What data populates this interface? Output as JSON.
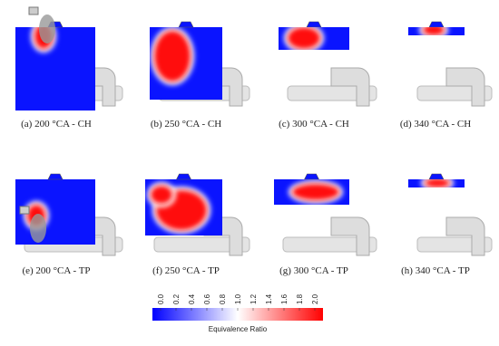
{
  "figure": {
    "panels": [
      {
        "caption": "(a) 200 °CA - CH"
      },
      {
        "caption": "(b) 250 °CA - CH"
      },
      {
        "caption": "(c) 300 °CA - CH"
      },
      {
        "caption": "(d) 340 °CA - CH"
      },
      {
        "caption": "(e) 200 °CA - TP"
      },
      {
        "caption": "(f) 250 °CA - TP"
      },
      {
        "caption": "(g) 300 °CA - TP"
      },
      {
        "caption": "(h) 340 °CA - TP"
      }
    ],
    "colorbar": {
      "ticks": [
        {
          "value": 0,
          "label": "0.0"
        },
        {
          "value": 0.2,
          "label": "0.2"
        },
        {
          "value": 0.4,
          "label": "0.4"
        },
        {
          "value": 0.6,
          "label": "0.6"
        },
        {
          "value": 0.8,
          "label": "0.8"
        },
        {
          "value": 1,
          "label": "1.0"
        },
        {
          "value": 1.2,
          "label": "1.2"
        },
        {
          "value": 1.4,
          "label": "1.4"
        },
        {
          "value": 1.6,
          "label": "1.6"
        },
        {
          "value": 1.8,
          "label": "1.8"
        },
        {
          "value": 2,
          "label": "2.0"
        }
      ],
      "label": "Equivalence Ratio"
    }
  }
}
